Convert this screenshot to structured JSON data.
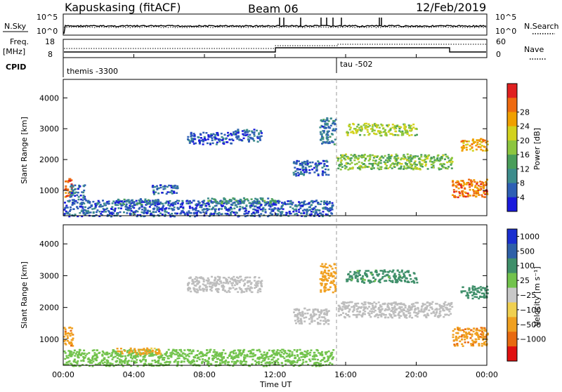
{
  "header": {
    "station": "Kapuskasing (fitACF)",
    "beam": "Beam 06",
    "date": "12/Feb/2019"
  },
  "top_panels": {
    "nsky_label": "N.Sky",
    "nsearch_label": "N.Search",
    "freq_label_line1": "Freq.",
    "freq_label_line2": "[MHz]",
    "nave_label": "Nave",
    "cpid_label": "CPID",
    "nsky_ticks": [
      "10^5",
      "10^0"
    ],
    "nsearch_ticks": [
      "10^5",
      "10^0"
    ],
    "freq_ticks": [
      "18",
      "8"
    ],
    "nave_ticks": [
      "60",
      "0"
    ],
    "cpid_segments": [
      {
        "label": "themis -3300",
        "start": "00:00"
      },
      {
        "label": "tau -502",
        "start": "15:30"
      }
    ]
  },
  "x_axis": {
    "title": "Time UT",
    "ticks": [
      "00:00",
      "04:00",
      "08:00",
      "12:00",
      "16:00",
      "20:00",
      "00:00"
    ]
  },
  "colors": {
    "power_scale": [
      "#1a1adc",
      "#2e5fb5",
      "#3d8c8c",
      "#4a9e5a",
      "#8dc63f",
      "#d2d21e",
      "#f0a000",
      "#ee6a10",
      "#e02020"
    ],
    "velocity_scale": [
      "#1a2fd0",
      "#2e60a8",
      "#3f8f6a",
      "#72c34c",
      "#c8c8c8",
      "#f0d050",
      "#f0a020",
      "#e86a10",
      "#e01010"
    ],
    "gs_gray": "#bdbdbd"
  },
  "chart_data": [
    {
      "type": "heatmap",
      "panel": "power",
      "ylabel": "Slant Range [km]",
      "ylim": [
        180,
        4600
      ],
      "yticks": [
        "1000",
        "2000",
        "3000",
        "4000"
      ],
      "xlim_hours": [
        0,
        24
      ],
      "colorbar_label": "Power [dB]",
      "colorbar_ticks": [
        "4",
        "8",
        "12",
        "16",
        "20",
        "24",
        "28"
      ],
      "colorbar_range": [
        0,
        30
      ],
      "regions": [
        {
          "t0": 0.0,
          "t1": 0.5,
          "r0": 800,
          "r1": 1400,
          "p": 26
        },
        {
          "t0": 0.3,
          "t1": 1.2,
          "r0": 700,
          "r1": 1200,
          "p": 6
        },
        {
          "t0": 0.0,
          "t1": 15.3,
          "r0": 180,
          "r1": 700,
          "p": 5
        },
        {
          "t0": 3.0,
          "t1": 5.5,
          "r0": 550,
          "r1": 750,
          "p": 7
        },
        {
          "t0": 5.0,
          "t1": 6.5,
          "r0": 900,
          "r1": 1200,
          "p": 6
        },
        {
          "t0": 7.0,
          "t1": 9.5,
          "r0": 2500,
          "r1": 2900,
          "p": 4
        },
        {
          "t0": 9.5,
          "t1": 11.2,
          "r0": 2600,
          "r1": 3000,
          "p": 5
        },
        {
          "t0": 8.0,
          "t1": 12.0,
          "r0": 600,
          "r1": 780,
          "p": 10
        },
        {
          "t0": 13.0,
          "t1": 15.0,
          "r0": 1500,
          "r1": 2000,
          "p": 5
        },
        {
          "t0": 14.5,
          "t1": 15.4,
          "r0": 2500,
          "r1": 3400,
          "p": 7
        },
        {
          "t0": 15.5,
          "t1": 22.0,
          "r0": 1700,
          "r1": 2200,
          "p": 14
        },
        {
          "t0": 16.0,
          "t1": 20.0,
          "r0": 2800,
          "r1": 3200,
          "p": 16
        },
        {
          "t0": 22.0,
          "t1": 24.0,
          "r0": 800,
          "r1": 1400,
          "p": 24
        },
        {
          "t0": 22.5,
          "t1": 24.0,
          "r0": 2300,
          "r1": 2700,
          "p": 22
        }
      ]
    },
    {
      "type": "heatmap",
      "panel": "velocity",
      "ylabel": "Slant Range [km]",
      "ylim": [
        180,
        4600
      ],
      "yticks": [
        "1000",
        "2000",
        "3000",
        "4000"
      ],
      "xlim_hours": [
        0,
        24
      ],
      "colorbar_label": "Velocity [m s⁻¹]",
      "colorbar_ticks": [
        "1000",
        "500",
        "100",
        "25",
        "−25",
        "−100",
        "−500",
        "−1000"
      ],
      "regions": [
        {
          "t0": 0.0,
          "t1": 0.5,
          "r0": 800,
          "r1": 1400,
          "v": -400
        },
        {
          "t0": 0.0,
          "t1": 15.3,
          "r0": 180,
          "r1": 700,
          "v": 60
        },
        {
          "t0": 3.0,
          "t1": 5.5,
          "r0": 550,
          "r1": 750,
          "v": -150
        },
        {
          "t0": 7.0,
          "t1": 11.2,
          "r0": 2500,
          "r1": 3000,
          "v": 0
        },
        {
          "t0": 13.0,
          "t1": 15.0,
          "r0": 1500,
          "r1": 2000,
          "v": 0
        },
        {
          "t0": 14.5,
          "t1": 15.4,
          "r0": 2500,
          "r1": 3400,
          "v": -300
        },
        {
          "t0": 15.5,
          "t1": 22.0,
          "r0": 1700,
          "r1": 2200,
          "v": 0
        },
        {
          "t0": 16.0,
          "t1": 20.0,
          "r0": 2800,
          "r1": 3200,
          "v": 150
        },
        {
          "t0": 22.0,
          "t1": 24.0,
          "r0": 800,
          "r1": 1400,
          "v": -400
        },
        {
          "t0": 22.5,
          "t1": 24.0,
          "r0": 2300,
          "r1": 2700,
          "v": 300
        }
      ]
    }
  ]
}
